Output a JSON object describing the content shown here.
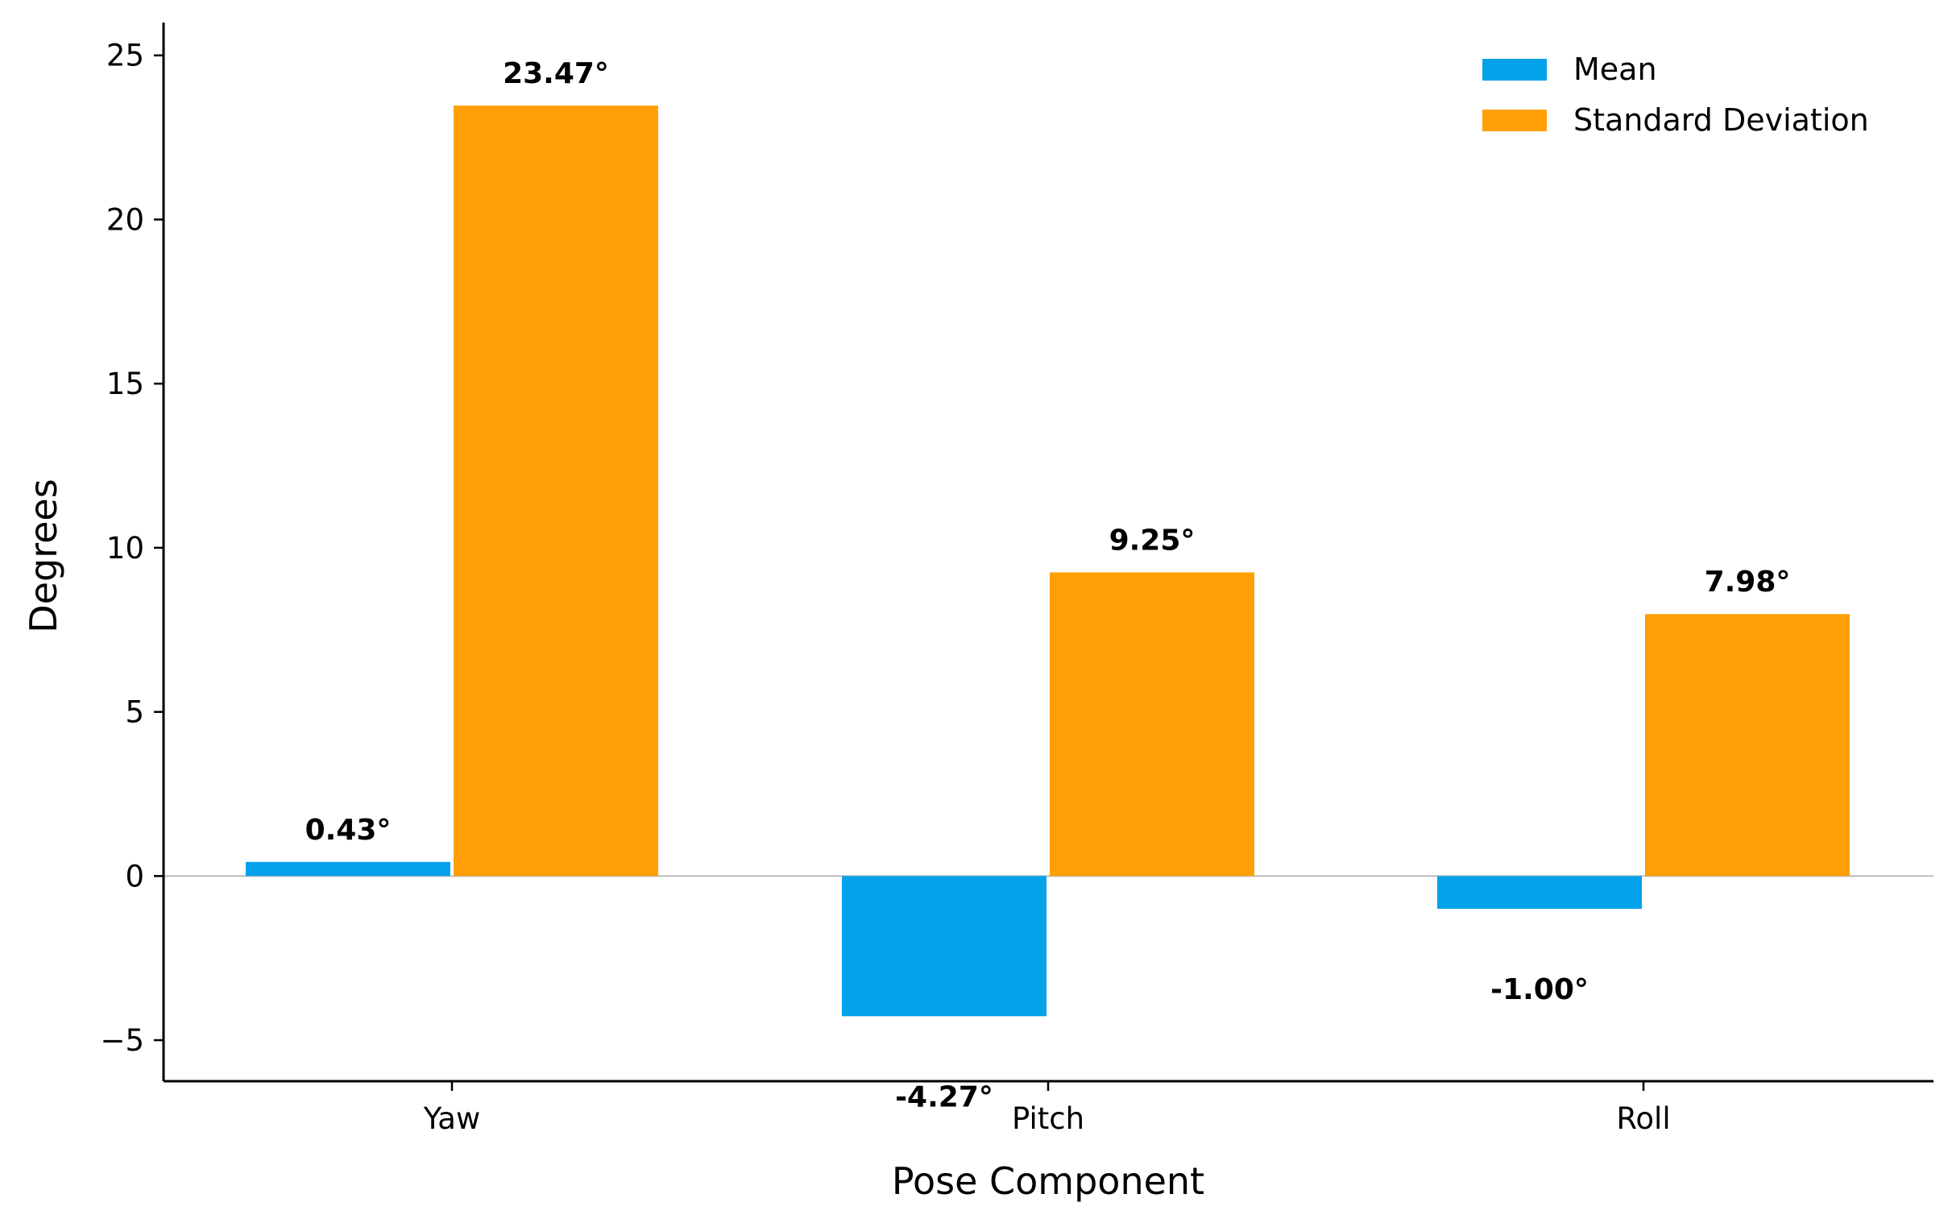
{
  "chart_data": {
    "type": "bar",
    "title": "",
    "xlabel": "Pose Component",
    "ylabel": "Degrees",
    "categories": [
      "Yaw",
      "Pitch",
      "Roll"
    ],
    "series": [
      {
        "name": "Mean",
        "color": "#03A2EB",
        "values": [
          0.43,
          -4.27,
          -1.0
        ],
        "labels": [
          "0.43°",
          "-4.27°",
          "-1.00°"
        ]
      },
      {
        "name": "Standard Deviation",
        "color": "#FF9F05",
        "values": [
          23.47,
          9.25,
          7.98
        ],
        "labels": [
          "23.47°",
          "9.25°",
          "7.98°"
        ]
      }
    ],
    "ylim": [
      -6.25,
      26.0
    ],
    "yticks": [
      -5,
      0,
      5,
      10,
      15,
      20,
      25
    ],
    "ytick_labels": [
      "−5",
      "0",
      "5",
      "10",
      "15",
      "20",
      "25"
    ],
    "grid": false,
    "zero_line": true,
    "legend_position": "top-right"
  }
}
